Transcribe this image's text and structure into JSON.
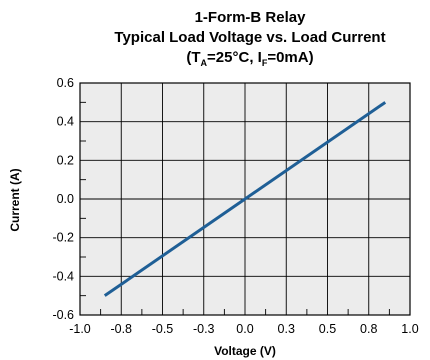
{
  "chart_data": {
    "type": "line",
    "title": "1-Form-B Relay",
    "subtitle": "Typical Load Voltage vs. Load Current",
    "conditions": {
      "open": "(T",
      "ta_sub": "A",
      "ta_value": "=25°C, I",
      "if_sub": "F",
      "if_value": "=0mA)"
    },
    "xlabel": "Voltage (V)",
    "ylabel": "Current (A)",
    "xlim": [
      -1.0,
      1.0
    ],
    "ylim": [
      -0.6,
      0.6
    ],
    "x_ticks": [
      {
        "value": -1.0,
        "label": "-1.0"
      },
      {
        "value": -0.75,
        "label": "-0.8"
      },
      {
        "value": -0.5,
        "label": "-0.5"
      },
      {
        "value": -0.25,
        "label": "-0.3"
      },
      {
        "value": 0.0,
        "label": "0.0"
      },
      {
        "value": 0.25,
        "label": "0.3"
      },
      {
        "value": 0.5,
        "label": "0.5"
      },
      {
        "value": 0.75,
        "label": "0.8"
      },
      {
        "value": 1.0,
        "label": "1.0"
      }
    ],
    "y_ticks": [
      {
        "value": 0.6,
        "label": "0.6"
      },
      {
        "value": 0.4,
        "label": "0.4"
      },
      {
        "value": 0.2,
        "label": "0.2"
      },
      {
        "value": 0.0,
        "label": "0.0"
      },
      {
        "value": -0.2,
        "label": "-0.2"
      },
      {
        "value": -0.4,
        "label": "-0.4"
      },
      {
        "value": -0.6,
        "label": "-0.6"
      }
    ],
    "grid": true,
    "series": [
      {
        "x": [
          -0.85,
          0.0,
          0.85
        ],
        "y": [
          -0.5,
          0.0,
          0.5
        ]
      }
    ],
    "colors": {
      "line": "#1f5f96",
      "plot_background": "#ececec",
      "grid": "#000000"
    }
  }
}
